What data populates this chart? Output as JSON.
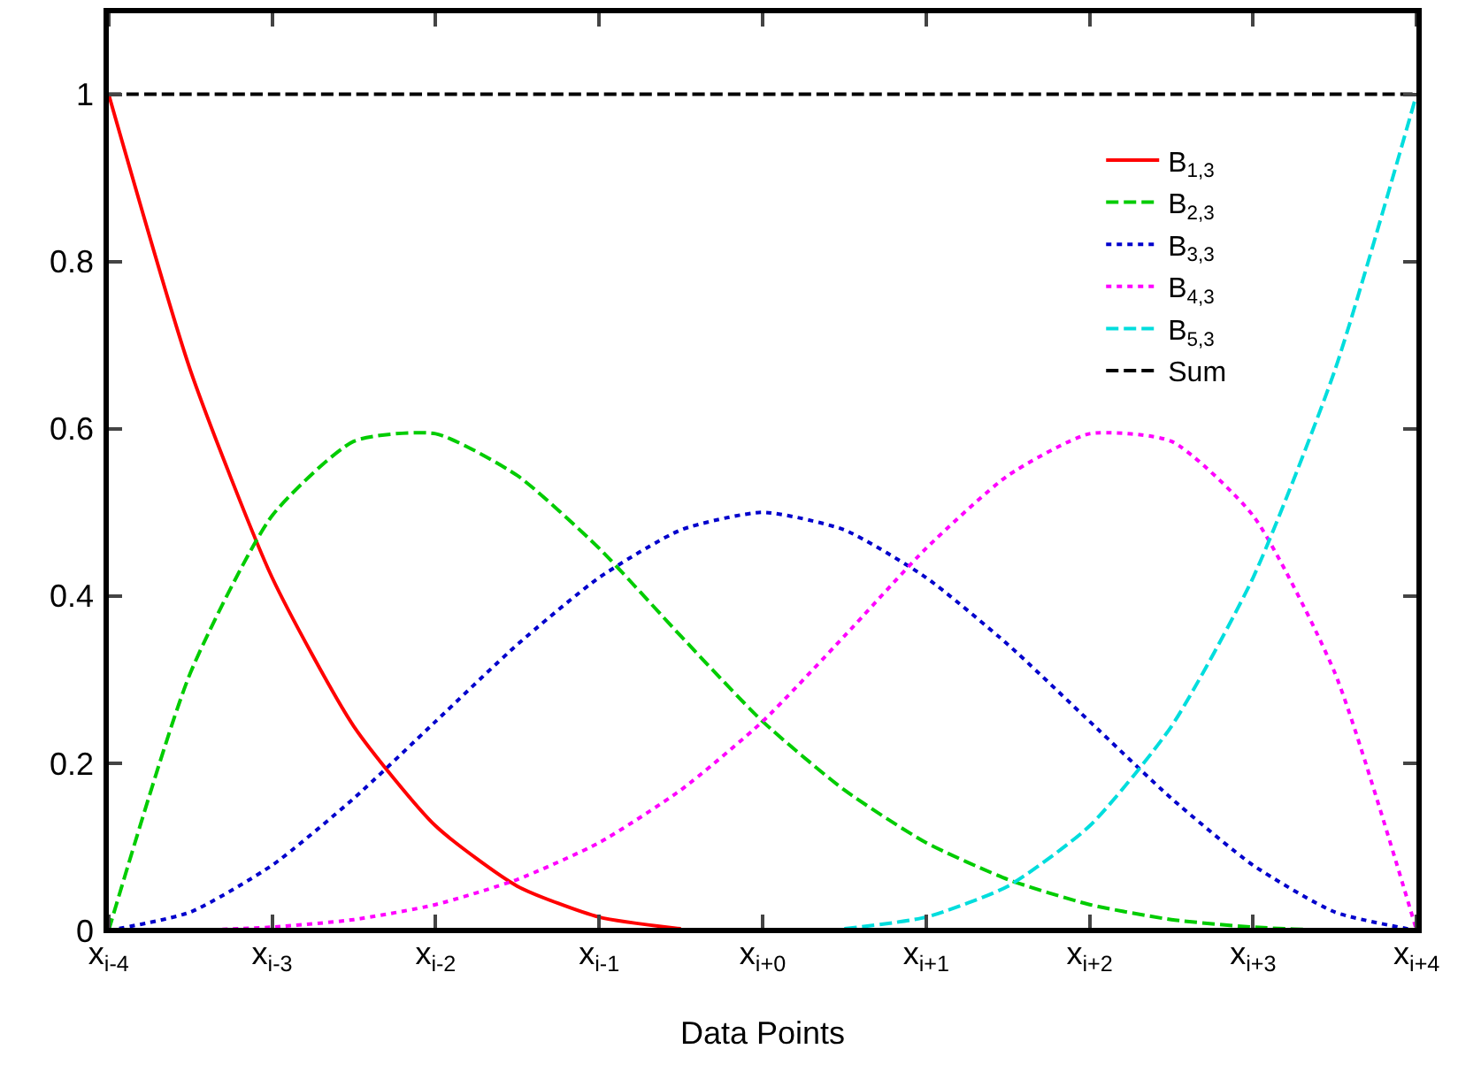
{
  "chart_data": {
    "type": "line",
    "xlabel": "Data Points",
    "categories": [
      "x$_{i-4}$",
      null,
      "x$_{i-3}$",
      null,
      "x$_{i-2}$",
      null,
      "x$_{i-1}$",
      null,
      "x$_{i+0}$",
      null,
      "x$_{i+1}$",
      null,
      "x$_{i+2}$",
      null,
      "x$_{i+3}$",
      null,
      "x$_{i+4}$"
    ],
    "series": [
      {
        "name": "B$_{1,3}$",
        "color": "#ff0000",
        "line_style": "solid",
        "values": [
          1,
          0.67,
          0.422,
          0.244,
          0.125,
          0.053,
          0.016,
          0.002,
          null,
          null,
          null,
          null,
          null,
          null,
          null,
          null,
          null
        ]
      },
      {
        "name": "B$_{2,3}$",
        "color": "#00cc00",
        "line_style": "dashed",
        "values": [
          0,
          0.308,
          0.496,
          0.585,
          0.594,
          0.544,
          0.457,
          0.352,
          0.25,
          0.168,
          0.105,
          0.061,
          0.031,
          0.013,
          0.004,
          0,
          0
        ]
      },
      {
        "name": "B$_{3,3}$",
        "color": "#0000cc",
        "line_style": "dotted",
        "values": [
          0,
          0.022,
          0.078,
          0.158,
          0.25,
          0.342,
          0.422,
          0.479,
          0.5,
          0.479,
          0.422,
          0.342,
          0.25,
          0.158,
          0.078,
          0.022,
          0
        ]
      },
      {
        "name": "B$_{4,3}$",
        "color": "#ff00ff",
        "line_style": "dotted",
        "values": [
          null,
          0,
          0.004,
          0.013,
          0.031,
          0.061,
          0.105,
          0.168,
          0.25,
          0.352,
          0.457,
          0.544,
          0.594,
          0.585,
          0.496,
          0.308,
          0
        ]
      },
      {
        "name": "B$_{5,3}$",
        "color": "#00dddd",
        "line_style": "dashed",
        "values": [
          null,
          null,
          null,
          null,
          null,
          null,
          null,
          null,
          null,
          0.002,
          0.016,
          0.053,
          0.125,
          0.244,
          0.422,
          0.67,
          1
        ]
      },
      {
        "name": "Sum",
        "color": "#000000",
        "line_style": "dashed",
        "values": [
          1,
          1,
          1,
          1,
          1,
          1,
          1,
          1,
          1,
          1,
          1,
          1,
          1,
          1,
          1,
          1,
          1
        ]
      }
    ],
    "ylim": [
      0,
      1.1
    ],
    "yticks": [
      0,
      0.2,
      0.4,
      0.6,
      0.8,
      1
    ],
    "grid": false,
    "legend": "top right",
    "marker": "none"
  }
}
